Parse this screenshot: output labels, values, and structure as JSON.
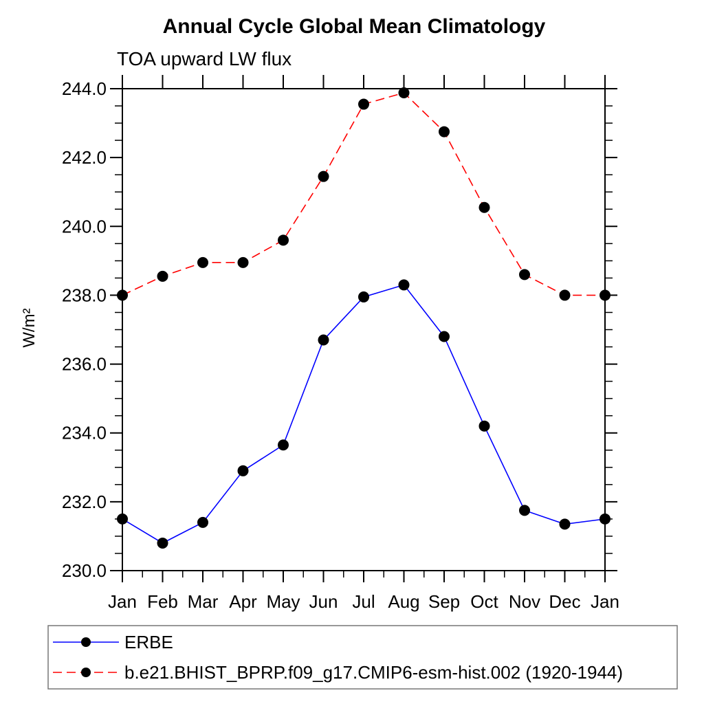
{
  "chart_data": {
    "type": "line",
    "title": "Annual Cycle Global Mean Climatology",
    "subtitle": "TOA upward LW flux",
    "ylabel": "W/m²",
    "categories": [
      "Jan",
      "Feb",
      "Mar",
      "Apr",
      "May",
      "Jun",
      "Jul",
      "Aug",
      "Sep",
      "Oct",
      "Nov",
      "Dec",
      "Jan"
    ],
    "ylim": [
      230.0,
      244.0
    ],
    "ytick_major_interval": 2.0,
    "ytick_minor_interval": 0.5,
    "ytick_labels": [
      "230.0",
      "232.0",
      "234.0",
      "236.0",
      "238.0",
      "240.0",
      "242.0",
      "244.0"
    ],
    "grid": false,
    "legend_position": "bottom-left-box",
    "frame_color": "#000000",
    "marker_color": "#000000",
    "series": [
      {
        "name": "ERBE",
        "color": "#0000ff",
        "line_style": "solid",
        "marker": "filled-circle",
        "values": [
          231.5,
          230.8,
          231.4,
          232.9,
          233.65,
          236.7,
          237.95,
          238.3,
          236.8,
          234.2,
          231.75,
          231.35,
          231.5
        ]
      },
      {
        "name": "b.e21.BHIST_BPRP.f09_g17.CMIP6-esm-hist.002 (1920-1944)",
        "color": "#ff0000",
        "line_style": "dashed",
        "marker": "filled-circle",
        "values": [
          238.0,
          238.55,
          238.95,
          238.95,
          239.6,
          241.45,
          243.55,
          243.88,
          242.75,
          240.55,
          238.6,
          238.0,
          238.0
        ]
      }
    ]
  }
}
